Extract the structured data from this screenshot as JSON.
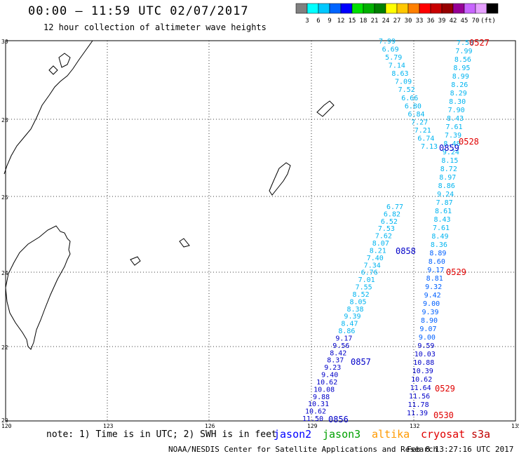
{
  "header": {
    "title": "00:00 – 11:59 UTC 02/07/2017",
    "subtitle": "12 hour collection of altimeter wave heights"
  },
  "color_scale": {
    "colors": [
      "#808080",
      "#00ffff",
      "#00c8ff",
      "#0064ff",
      "#0000ff",
      "#00e000",
      "#00b000",
      "#008000",
      "#ffff00",
      "#ffc800",
      "#ff8000",
      "#ff0000",
      "#c80000",
      "#960000",
      "#960096",
      "#c864ff",
      "#e6a0ff",
      "#000000"
    ],
    "labels": [
      "3",
      "6",
      "9",
      "12",
      "15",
      "18",
      "21",
      "24",
      "27",
      "30",
      "33",
      "36",
      "39",
      "42",
      "45",
      "70"
    ],
    "unit": "(ft)"
  },
  "map": {
    "lat_labels": [
      "30",
      "28",
      "26",
      "24",
      "22",
      "20"
    ],
    "lon_labels": [
      "120",
      "123",
      "126",
      "129",
      "132",
      "135"
    ]
  },
  "tracks": {
    "jason2_values": [
      "7.58",
      "7.99",
      "8.56",
      "8.95",
      "8.99",
      "8.26",
      "8.29",
      "8.30",
      "7.90",
      "8.43",
      "7.61",
      "7.39",
      "8.48",
      "9.24",
      "8.15",
      "8.72",
      "8.97",
      "8.86",
      "9.24",
      "7.87",
      "8.61",
      "8.43",
      "7.61",
      "8.49",
      "8.36",
      "8.89",
      "8.60",
      "9.17",
      "8.81",
      "9.32",
      "9.42",
      "9.00",
      "9.39",
      "8.90",
      "9.07",
      "9.00",
      "9.59",
      "10.03",
      "10.88",
      "10.39",
      "10.62",
      "11.64",
      "11.56",
      "11.78",
      "11.39"
    ],
    "jason2b_values": [
      "6.77",
      "6.82",
      "6.52",
      "7.53",
      "7.62",
      "8.07",
      "8.21",
      "7.40",
      "7.34",
      "6.76",
      "7.01",
      "7.55",
      "8.52",
      "8.05",
      "8.38",
      "9.39",
      "8.47",
      "8.86",
      "9.17",
      "9.56",
      "8.42",
      "8.37",
      "9.23",
      "9.40",
      "10.62",
      "10.08",
      "9.88",
      "10.31",
      "10.62",
      "11.50"
    ],
    "upper_values": [
      "7.13",
      "6.74",
      "7.21",
      "7.27",
      "6.84",
      "6.80",
      "6.66",
      "7.52",
      "7.09",
      "8.63",
      "7.14",
      "5.79",
      "6.69",
      "7.99"
    ],
    "pass_labels_blue": [
      "0859",
      "0858",
      "0857",
      "0856"
    ],
    "pass_labels_red": [
      "0527",
      "0528",
      "0529",
      "0529",
      "0530"
    ]
  },
  "footer": {
    "note": "note: 1) Time is in UTC; 2) SWH is in feet",
    "sat_jason2": "jason2",
    "sat_jason3": "jason3",
    "sat_altika": "altika",
    "sat_cryosat": "cryosat",
    "sat_s3a": "s3a",
    "credit": "NOAA/NESDIS Center for Satellite Applications and Research",
    "generated": "Feb  8 13:27:16 UTC 2017"
  }
}
